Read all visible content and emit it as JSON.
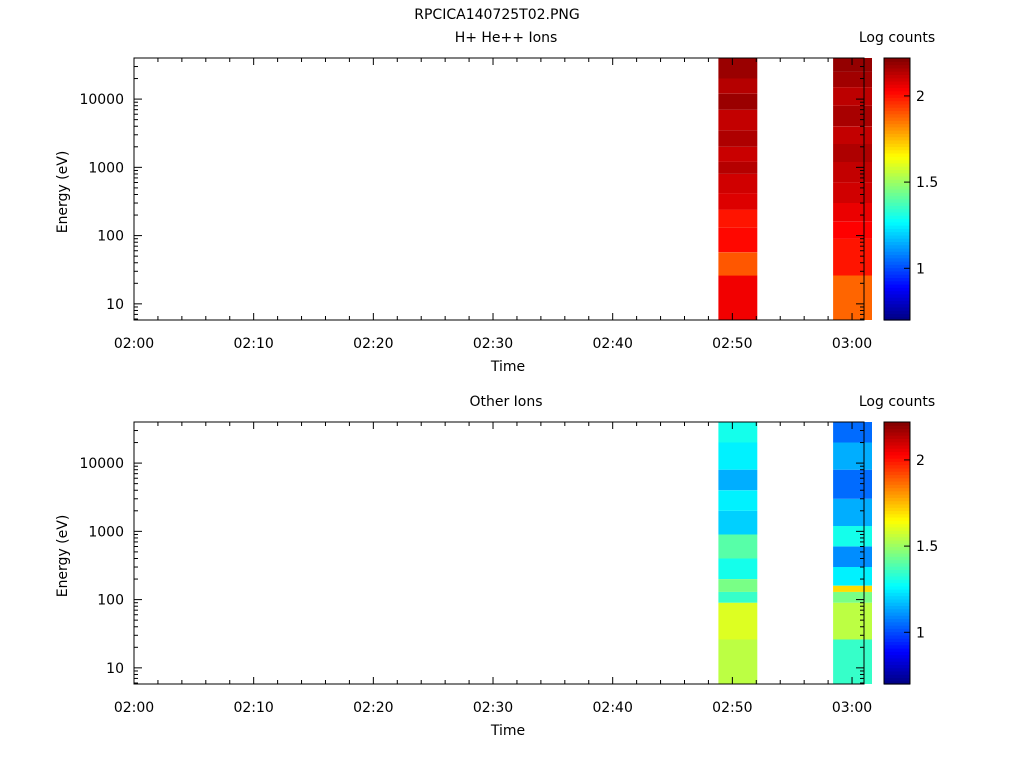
{
  "figure_title": "RPCICA140725T02.PNG",
  "colorbar": {
    "label": "Log counts",
    "range": [
      0.7,
      2.22
    ],
    "ticks": [
      1,
      1.5,
      2
    ],
    "tick_labels": [
      "1",
      "1.5",
      "2"
    ],
    "colormap": "jet"
  },
  "chart_data": [
    {
      "type": "heatmap",
      "title": "H+ He++ Ions",
      "xlabel": "Time",
      "ylabel": "Energy (eV)",
      "x_range": [
        "02:00",
        "03:01"
      ],
      "x_ticks": [
        "02:00",
        "02:10",
        "02:20",
        "02:30",
        "02:40",
        "02:50",
        "03:00"
      ],
      "y_scale": "log",
      "ylim": [
        5.8,
        40000
      ],
      "y_ticks": [
        10,
        100,
        1000,
        10000
      ],
      "y_tick_labels": [
        "10",
        "100",
        "1000",
        "10000"
      ],
      "columns": [
        {
          "t_start": "02:48:50",
          "t_end": "02:52:05",
          "bins": [
            {
              "e0": 5.8,
              "e1": 26,
              "v": 2.05
            },
            {
              "e0": 26,
              "e1": 57,
              "v": 1.9
            },
            {
              "e0": 57,
              "e1": 130,
              "v": 2.02
            },
            {
              "e0": 130,
              "e1": 240,
              "v": 2.0
            },
            {
              "e0": 240,
              "e1": 420,
              "v": 2.08
            },
            {
              "e0": 420,
              "e1": 800,
              "v": 2.1
            },
            {
              "e0": 800,
              "e1": 1200,
              "v": 2.14
            },
            {
              "e0": 1200,
              "e1": 2000,
              "v": 2.11
            },
            {
              "e0": 2000,
              "e1": 3500,
              "v": 2.15
            },
            {
              "e0": 3500,
              "e1": 7000,
              "v": 2.12
            },
            {
              "e0": 7000,
              "e1": 12000,
              "v": 2.18
            },
            {
              "e0": 12000,
              "e1": 20000,
              "v": 2.14
            },
            {
              "e0": 20000,
              "e1": 40000,
              "v": 2.18
            }
          ]
        },
        {
          "t_start": "02:58:25",
          "t_end": "03:01:40",
          "bins": [
            {
              "e0": 5.8,
              "e1": 26,
              "v": 1.88
            },
            {
              "e0": 26,
              "e1": 90,
              "v": 2.0
            },
            {
              "e0": 90,
              "e1": 160,
              "v": 2.03
            },
            {
              "e0": 160,
              "e1": 300,
              "v": 2.06
            },
            {
              "e0": 300,
              "e1": 600,
              "v": 2.1
            },
            {
              "e0": 600,
              "e1": 1200,
              "v": 2.12
            },
            {
              "e0": 1200,
              "e1": 2200,
              "v": 2.15
            },
            {
              "e0": 2200,
              "e1": 4000,
              "v": 2.12
            },
            {
              "e0": 4000,
              "e1": 8000,
              "v": 2.16
            },
            {
              "e0": 8000,
              "e1": 15000,
              "v": 2.13
            },
            {
              "e0": 15000,
              "e1": 25000,
              "v": 2.17
            },
            {
              "e0": 25000,
              "e1": 40000,
              "v": 2.19
            }
          ]
        }
      ]
    },
    {
      "type": "heatmap",
      "title": "Other Ions",
      "xlabel": "Time",
      "ylabel": "Energy (eV)",
      "x_range": [
        "02:00",
        "03:01"
      ],
      "x_ticks": [
        "02:00",
        "02:10",
        "02:20",
        "02:30",
        "02:40",
        "02:50",
        "03:00"
      ],
      "y_scale": "log",
      "ylim": [
        5.8,
        40000
      ],
      "y_ticks": [
        10,
        100,
        1000,
        10000
      ],
      "y_tick_labels": [
        "10",
        "100",
        "1000",
        "10000"
      ],
      "columns": [
        {
          "t_start": "02:48:50",
          "t_end": "02:52:05",
          "bins": [
            {
              "e0": 5.8,
              "e1": 26,
              "v": 1.55
            },
            {
              "e0": 26,
              "e1": 90,
              "v": 1.6
            },
            {
              "e0": 90,
              "e1": 130,
              "v": 1.35
            },
            {
              "e0": 130,
              "e1": 200,
              "v": 1.45
            },
            {
              "e0": 200,
              "e1": 400,
              "v": 1.3
            },
            {
              "e0": 400,
              "e1": 900,
              "v": 1.4
            },
            {
              "e0": 900,
              "e1": 2000,
              "v": 1.2
            },
            {
              "e0": 2000,
              "e1": 4000,
              "v": 1.25
            },
            {
              "e0": 4000,
              "e1": 8000,
              "v": 1.15
            },
            {
              "e0": 8000,
              "e1": 20000,
              "v": 1.25
            },
            {
              "e0": 20000,
              "e1": 40000,
              "v": 1.3
            }
          ]
        },
        {
          "t_start": "02:58:25",
          "t_end": "03:01:40",
          "bins": [
            {
              "e0": 5.8,
              "e1": 26,
              "v": 1.35
            },
            {
              "e0": 26,
              "e1": 90,
              "v": 1.55
            },
            {
              "e0": 90,
              "e1": 130,
              "v": 1.45
            },
            {
              "e0": 130,
              "e1": 160,
              "v": 1.7
            },
            {
              "e0": 160,
              "e1": 300,
              "v": 1.25
            },
            {
              "e0": 300,
              "e1": 600,
              "v": 1.1
            },
            {
              "e0": 600,
              "e1": 1200,
              "v": 1.3
            },
            {
              "e0": 1200,
              "e1": 3000,
              "v": 1.15
            },
            {
              "e0": 3000,
              "e1": 8000,
              "v": 1.05
            },
            {
              "e0": 8000,
              "e1": 20000,
              "v": 1.15
            },
            {
              "e0": 20000,
              "e1": 40000,
              "v": 1.05
            }
          ]
        }
      ]
    }
  ]
}
